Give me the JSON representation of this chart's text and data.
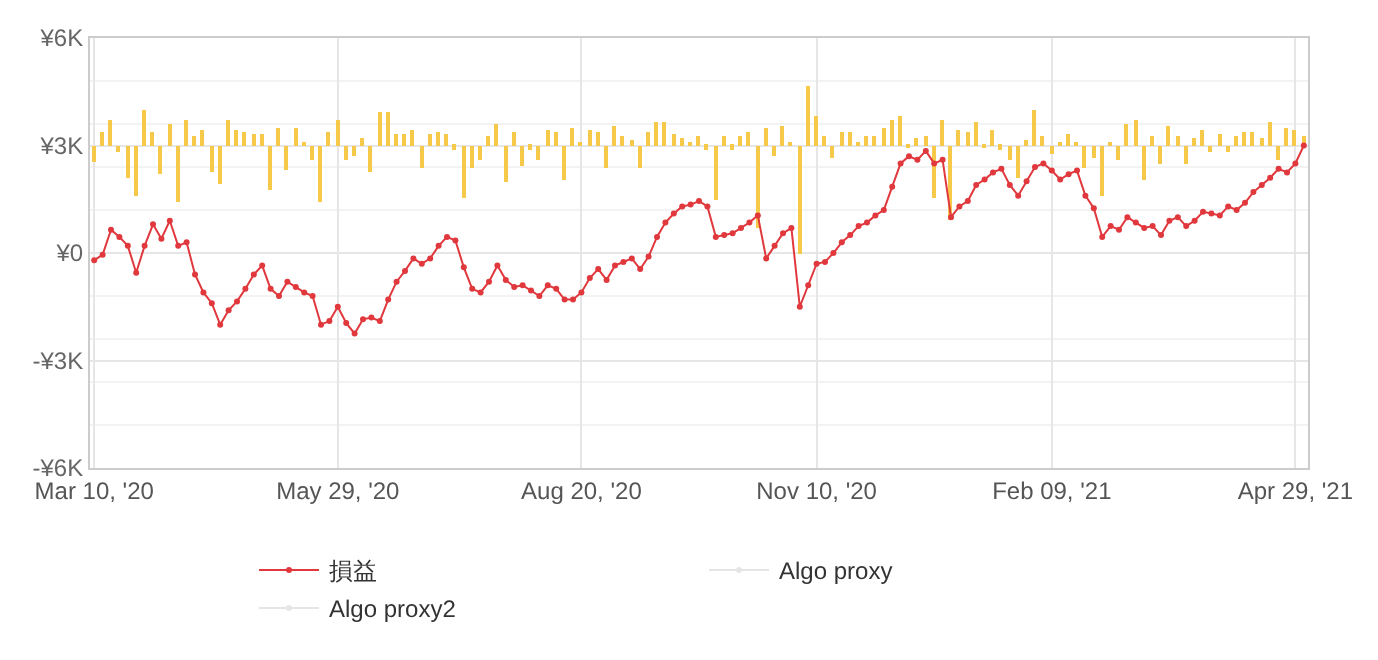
{
  "chart_data": {
    "type": "line",
    "categories": [
      "Mar 10, '20",
      null,
      null,
      null,
      null,
      null,
      null,
      null,
      null,
      null,
      null,
      null,
      null,
      null,
      null,
      null,
      null,
      null,
      null,
      null,
      null,
      null,
      null,
      null,
      null,
      null,
      null,
      null,
      null,
      "May 29, '20",
      null,
      null,
      null,
      null,
      null,
      null,
      null,
      null,
      null,
      null,
      null,
      null,
      null,
      null,
      null,
      null,
      null,
      null,
      null,
      null,
      null,
      null,
      null,
      null,
      null,
      null,
      null,
      null,
      "Aug 20, '20",
      null,
      null,
      null,
      null,
      null,
      null,
      null,
      null,
      null,
      null,
      null,
      null,
      null,
      null,
      null,
      null,
      null,
      null,
      null,
      null,
      null,
      null,
      null,
      null,
      null,
      null,
      null,
      "Nov 10, '20",
      null,
      null,
      null,
      null,
      null,
      null,
      null,
      null,
      null,
      null,
      null,
      null,
      null,
      null,
      null,
      null,
      null,
      null,
      null,
      null,
      null,
      null,
      null,
      null,
      null,
      null,
      null,
      "Feb 09, '21",
      null,
      null,
      null,
      null,
      null,
      null,
      null,
      null,
      null,
      null,
      null,
      null,
      null,
      null,
      null,
      null,
      null,
      null,
      null,
      null,
      null,
      null,
      null,
      null,
      null,
      null,
      null,
      null,
      "Apr 29, '21",
      null
    ],
    "series": [
      {
        "type": "bar",
        "color": "#f7c948",
        "values": [
          -450,
          400,
          700,
          -200,
          -900,
          -1400,
          1000,
          350,
          -800,
          600,
          -1550,
          700,
          250,
          450,
          -750,
          -1050,
          700,
          450,
          350,
          300,
          300,
          -1250,
          500,
          -700,
          500,
          100,
          -400,
          -1600,
          350,
          700,
          -400,
          -300,
          200,
          -750,
          950,
          950,
          300,
          300,
          450,
          -650,
          300,
          350,
          300,
          -100,
          -1450,
          -600,
          -400,
          250,
          600,
          -1000,
          350,
          -550,
          -100,
          -400,
          450,
          350,
          -950,
          500,
          100,
          450,
          350,
          -600,
          550,
          250,
          150,
          -600,
          350,
          650,
          650,
          300,
          200,
          100,
          250,
          -100,
          -1500,
          250,
          -100,
          250,
          350,
          -2300,
          500,
          -300,
          550,
          100,
          -3000,
          1650,
          850,
          250,
          -350,
          350,
          350,
          100,
          250,
          250,
          500,
          700,
          850,
          -50,
          200,
          250,
          -1450,
          700,
          -2100,
          450,
          350,
          650,
          -50,
          450,
          -100,
          -400,
          -900,
          150,
          1000,
          250,
          -250,
          100,
          300,
          100,
          -600,
          -350,
          -1400,
          100,
          -400,
          600,
          700,
          -950,
          250,
          -500,
          550,
          250,
          -500,
          200,
          450,
          -200,
          300,
          -200,
          250,
          350,
          350,
          200,
          650,
          -400,
          500,
          450,
          250
        ],
        "base": [
          3000,
          3000,
          3000,
          3000,
          3000,
          3000,
          3000,
          3000,
          3000,
          3000,
          3000,
          3000,
          3000,
          3000,
          3000,
          3000,
          3000,
          3000,
          3000,
          3000,
          3000,
          3000,
          3000,
          3000,
          3000,
          3000,
          3000,
          3000,
          3000,
          3000,
          3000,
          3000,
          3000,
          3000,
          3000,
          3000,
          3000,
          3000,
          3000,
          3000,
          3000,
          3000,
          3000,
          3000,
          3000,
          3000,
          3000,
          3000,
          3000,
          3000,
          3000,
          3000,
          3000,
          3000,
          3000,
          3000,
          3000,
          3000,
          3000,
          3000,
          3000,
          3000,
          3000,
          3000,
          3000,
          3000,
          3000,
          3000,
          3000,
          3000,
          3000,
          3000,
          3000,
          3000,
          3000,
          3000,
          3000,
          3000,
          3000,
          3000,
          3000,
          3000,
          3000,
          3000,
          3000,
          3000,
          3000,
          3000,
          3000,
          3000,
          3000,
          3000,
          3000,
          3000,
          3000,
          3000,
          3000,
          3000,
          3000,
          3000,
          3000,
          3000,
          3000,
          3000,
          3000,
          3000,
          3000,
          3000,
          3000,
          3000,
          3000,
          3000,
          3000,
          3000,
          3000,
          3000,
          3000,
          3000,
          3000,
          3000,
          3000,
          3000,
          3000,
          3000,
          3000,
          3000,
          3000,
          3000,
          3000,
          3000,
          3000,
          3000,
          3000,
          3000,
          3000,
          3000,
          3000,
          3000,
          3000,
          3000,
          3000,
          3000,
          3000,
          3000,
          3000
        ]
      },
      {
        "name": "損益",
        "color": "#e0383d",
        "values": [
          -200,
          -50,
          650,
          450,
          200,
          -550,
          200,
          800,
          400,
          900,
          200,
          300,
          -600,
          -1100,
          -1400,
          -2000,
          -1600,
          -1350,
          -1000,
          -600,
          -350,
          -1000,
          -1200,
          -800,
          -950,
          -1100,
          -1200,
          -2000,
          -1900,
          -1500,
          -1950,
          -2250,
          -1850,
          -1800,
          -1900,
          -1300,
          -800,
          -500,
          -150,
          -300,
          -150,
          200,
          450,
          350,
          -400,
          -1000,
          -1100,
          -800,
          -350,
          -750,
          -950,
          -900,
          -1050,
          -1200,
          -900,
          -1000,
          -1300,
          -1300,
          -1100,
          -700,
          -450,
          -750,
          -350,
          -250,
          -150,
          -450,
          -100,
          450,
          850,
          1100,
          1300,
          1350,
          1450,
          1300,
          450,
          500,
          550,
          700,
          850,
          1050,
          -150,
          200,
          550,
          700,
          -1500,
          -900,
          -300,
          -250,
          0,
          300,
          500,
          750,
          850,
          1050,
          1200,
          1850,
          2500,
          2700,
          2600,
          2850,
          2500,
          2600,
          1000,
          1300,
          1450,
          1900,
          2050,
          2250,
          2350,
          1900,
          1600,
          2000,
          2400,
          2500,
          2300,
          2050,
          2200,
          2300,
          1600,
          1250,
          450,
          750,
          650,
          1000,
          850,
          700,
          750,
          500,
          900,
          1000,
          750,
          900,
          1150,
          1100,
          1050,
          1300,
          1200,
          1400,
          1700,
          1900,
          2100,
          2350,
          2250,
          2500,
          3000
        ]
      },
      {
        "name": "Algo proxy",
        "color": "#cccccc",
        "values": [
          null,
          null,
          null,
          null,
          null,
          null,
          null,
          null,
          null,
          null,
          null,
          null,
          null,
          null,
          null,
          null,
          null,
          null,
          null,
          null,
          null,
          null,
          null,
          null,
          null,
          null,
          null,
          null,
          null,
          null,
          null,
          null,
          null,
          null,
          null,
          null,
          null,
          null,
          null,
          null,
          null,
          null,
          null,
          null,
          null,
          null,
          null,
          null,
          null,
          null,
          null,
          null,
          null,
          null,
          null,
          null,
          null,
          null,
          null,
          null,
          null,
          null,
          null,
          null,
          null,
          null,
          null,
          null,
          null,
          null,
          null,
          null,
          null,
          null,
          null,
          null,
          null,
          null,
          null,
          null,
          null,
          null,
          null,
          null,
          null,
          null,
          null,
          null,
          null,
          null,
          null,
          null,
          null,
          null,
          null,
          null,
          null,
          null,
          null,
          null,
          null,
          null,
          null,
          null,
          null,
          null,
          null,
          null,
          null,
          null,
          null,
          null,
          null,
          null,
          null,
          null,
          null,
          null,
          null,
          null,
          null,
          null,
          null,
          null,
          null,
          null,
          null,
          null,
          null,
          null,
          null,
          null,
          null,
          null,
          null,
          null,
          null,
          null,
          null,
          null,
          null,
          null,
          null,
          null,
          null
        ]
      },
      {
        "name": "Algo proxy2",
        "color": "#cccccc",
        "values": [
          null,
          null,
          null,
          null,
          null,
          null,
          null,
          null,
          null,
          null,
          null,
          null,
          null,
          null,
          null,
          null,
          null,
          null,
          null,
          null,
          null,
          null,
          null,
          null,
          null,
          null,
          null,
          null,
          null,
          null,
          null,
          null,
          null,
          null,
          null,
          null,
          null,
          null,
          null,
          null,
          null,
          null,
          null,
          null,
          null,
          null,
          null,
          null,
          null,
          null,
          null,
          null,
          null,
          null,
          null,
          null,
          null,
          null,
          null,
          null,
          null,
          null,
          null,
          null,
          null,
          null,
          null,
          null,
          null,
          null,
          null,
          null,
          null,
          null,
          null,
          null,
          null,
          null,
          null,
          null,
          null,
          null,
          null,
          null,
          null,
          null,
          null,
          null,
          null,
          null,
          null,
          null,
          null,
          null,
          null,
          null,
          null,
          null,
          null,
          null,
          null,
          null,
          null,
          null,
          null,
          null,
          null,
          null,
          null,
          null,
          null,
          null,
          null,
          null,
          null,
          null,
          null,
          null,
          null,
          null,
          null,
          null,
          null,
          null,
          null,
          null,
          null,
          null,
          null,
          null,
          null,
          null,
          null,
          null,
          null,
          null,
          null,
          null,
          null,
          null,
          null,
          null,
          null,
          null,
          null
        ]
      }
    ],
    "ylim": [
      -6000,
      6000
    ],
    "yticks": [
      {
        "value": -6000,
        "label": "-¥6K"
      },
      {
        "value": -4800,
        "label": null
      },
      {
        "value": -3600,
        "label": null
      },
      {
        "value": -3000,
        "label": "-¥3K"
      },
      {
        "value": -2400,
        "label": null
      },
      {
        "value": -1200,
        "label": null
      },
      {
        "value": 0,
        "label": "¥0"
      },
      {
        "value": 1200,
        "label": null
      },
      {
        "value": 2400,
        "label": null
      },
      {
        "value": 3000,
        "label": "¥3K"
      },
      {
        "value": 3600,
        "label": null
      },
      {
        "value": 4800,
        "label": null
      },
      {
        "value": 6000,
        "label": "¥6K"
      }
    ],
    "grid": true,
    "legend": "bottom",
    "marker": "circle",
    "line_style": "solid"
  }
}
